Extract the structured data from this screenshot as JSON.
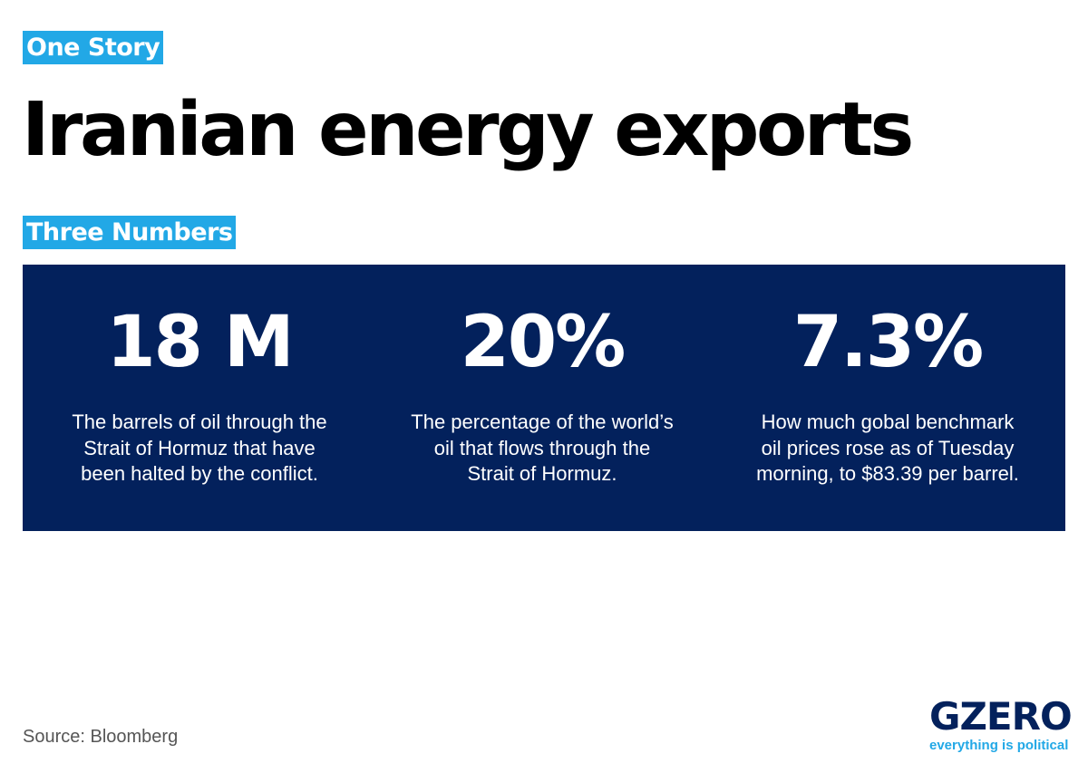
{
  "tags": {
    "section": "One Story",
    "subsection": "Three Numbers"
  },
  "headline": "Iranian energy exports",
  "stats": [
    {
      "value": "18 M",
      "description_lines": [
        "The barrels of oil through the",
        "Strait of Hormuz that have",
        "been halted by the conflict."
      ]
    },
    {
      "value": "20%",
      "description_lines": [
        "The percentage of the world’s",
        "oil that flows through the",
        "Strait of Hormuz."
      ]
    },
    {
      "value": "7.3%",
      "description_lines": [
        "How much gobal benchmark",
        "oil prices rose as of Tuesday",
        "morning, to $83.39 per barrel."
      ]
    }
  ],
  "footer": {
    "source": "Source: Bloomberg"
  },
  "logo": {
    "wordmark": "GZERO",
    "tagline": "everything is political"
  },
  "colors": {
    "accent_blue": "#22a8e6",
    "panel_navy": "#03215c",
    "headline": "#000000"
  }
}
